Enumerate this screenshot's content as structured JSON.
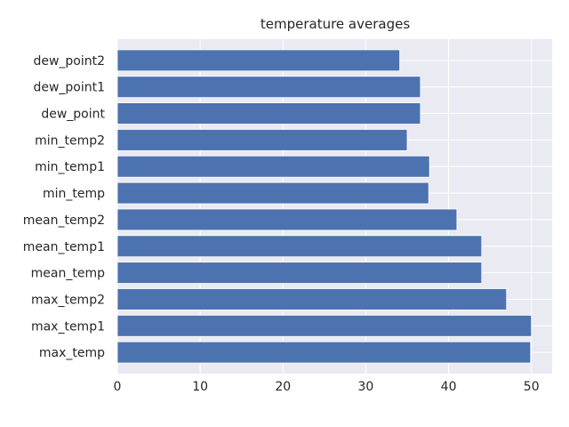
{
  "chart_data": {
    "type": "bar",
    "orientation": "horizontal",
    "title": "temperature averages",
    "xlabel": "",
    "ylabel": "",
    "categories": [
      "max_temp",
      "max_temp1",
      "max_temp2",
      "mean_temp",
      "mean_temp1",
      "mean_temp2",
      "min_temp",
      "min_temp1",
      "min_temp2",
      "dew_point",
      "dew_point1",
      "dew_point2"
    ],
    "values": [
      49.9,
      50.0,
      47.0,
      44.0,
      44.0,
      41.0,
      37.6,
      37.7,
      35.0,
      36.6,
      36.6,
      34.1
    ],
    "xlim": [
      0,
      52.5
    ],
    "xticks": [
      0,
      10,
      20,
      30,
      40,
      50
    ],
    "grid": true,
    "colors": {
      "bar": "#4c72b0",
      "background": "#eaeaf2",
      "grid": "#ffffff",
      "text": "#262626"
    }
  }
}
